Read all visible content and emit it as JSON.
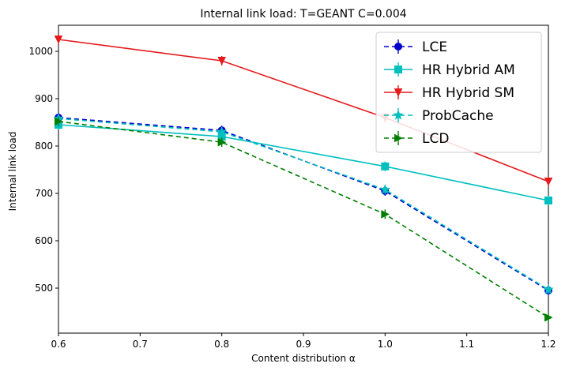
{
  "chart_data": {
    "type": "line",
    "title": "Internal link load: T=GEANT C=0.004",
    "xlabel": "Content distribution α",
    "ylabel": "Internal link load",
    "xlim": [
      0.6,
      1.2
    ],
    "ylim": [
      405,
      1055
    ],
    "xticks": [
      "0.6",
      "0.7",
      "0.8",
      "0.9",
      "1.0",
      "1.1",
      "1.2"
    ],
    "yticks": [
      "500",
      "600",
      "700",
      "800",
      "900",
      "1000"
    ],
    "x": [
      0.6,
      0.8,
      1.0,
      1.2
    ],
    "grid": false,
    "legend_position": "top-right",
    "series": [
      {
        "name": "LCE",
        "values": [
          860,
          833,
          705,
          495
        ],
        "color": "#0000cc",
        "dash": "dashed",
        "marker": "circle"
      },
      {
        "name": "HR Hybrid AM",
        "values": [
          845,
          820,
          757,
          685
        ],
        "color": "#00bfbf",
        "dash": "solid",
        "marker": "square"
      },
      {
        "name": "HR Hybrid SM",
        "values": [
          1025,
          980,
          860,
          725
        ],
        "color": "#e41a1c",
        "dash": "solid",
        "marker": "triangle-down"
      },
      {
        "name": "ProbCache",
        "values": [
          858,
          830,
          708,
          497
        ],
        "color": "#00bfbf",
        "dash": "dashed",
        "marker": "star"
      },
      {
        "name": "LCD",
        "values": [
          852,
          808,
          656,
          438
        ],
        "color": "#007f00",
        "dash": "dashed",
        "marker": "triangle-right"
      }
    ]
  }
}
